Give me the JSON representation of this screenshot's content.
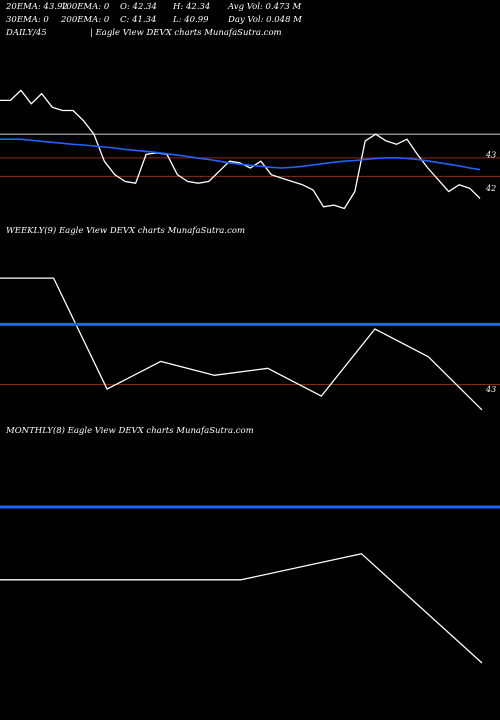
{
  "header": {
    "row1": [
      {
        "label": "20EMA: 43.92"
      },
      {
        "label": "100EMA: 0"
      },
      {
        "label": "O: 42.34"
      },
      {
        "label": "H: 42.34"
      },
      {
        "label": "Avg Vol: 0.473 M"
      }
    ],
    "row2": [
      {
        "label": "30EMA: 0"
      },
      {
        "label": "200EMA: 0"
      },
      {
        "label": "C: 41.34"
      },
      {
        "label": "L: 40.99"
      },
      {
        "label": "Day Vol: 0.048 M"
      }
    ]
  },
  "colors": {
    "background": "#000000",
    "price_line": "#ffffff",
    "ema_line": "#1e64ff",
    "gray_line": "#bbbbbb",
    "level_line": "#8b2a14"
  },
  "chart_data": [
    {
      "type": "line",
      "title": "DAILY/45",
      "subtitle": "| Eagle  View  DEVX  charts MunafaSutra.com",
      "price_labels": [
        "43",
        "42"
      ],
      "series": [
        {
          "role": "price",
          "values": [
            44.6,
            44.6,
            44.9,
            44.5,
            44.8,
            44.4,
            44.3,
            44.3,
            44.0,
            43.6,
            42.8,
            42.4,
            42.2,
            42.15,
            43.0,
            43.05,
            43.0,
            42.4,
            42.2,
            42.15,
            42.2,
            42.5,
            42.8,
            42.75,
            42.6,
            42.8,
            42.4,
            42.3,
            42.2,
            42.1,
            41.95,
            41.45,
            41.5,
            41.4,
            41.9,
            43.4,
            43.6,
            43.4,
            43.3,
            43.45,
            43.0,
            42.6,
            42.25,
            41.9,
            42.1,
            42.0,
            41.7
          ]
        },
        {
          "role": "ema",
          "values": [
            43.45,
            43.45,
            43.45,
            43.42,
            43.39,
            43.36,
            43.33,
            43.3,
            43.28,
            43.25,
            43.22,
            43.19,
            43.15,
            43.12,
            43.09,
            43.06,
            43.02,
            42.98,
            42.94,
            42.89,
            42.85,
            42.8,
            42.75,
            42.71,
            42.68,
            42.65,
            42.62,
            42.6,
            42.62,
            42.65,
            42.69,
            42.73,
            42.77,
            42.8,
            42.82,
            42.85,
            42.88,
            42.9,
            42.9,
            42.88,
            42.85,
            42.81,
            42.76,
            42.71,
            42.66,
            42.6,
            42.55
          ]
        }
      ],
      "levels": [
        43.6,
        42.9,
        42.35
      ]
    },
    {
      "type": "line",
      "title": "WEEKLY(9) Eagle  View  DEVX  charts MunafaSutra.com",
      "price_labels": [
        "43"
      ],
      "series": [
        {
          "role": "price",
          "values": [
            47.0,
            47.0,
            42.2,
            43.4,
            42.8,
            43.1,
            41.9,
            44.8,
            43.6,
            41.3
          ]
        },
        {
          "role": "ema",
          "values": [
            45.0,
            45.0
          ]
        }
      ],
      "levels": [
        42.4
      ]
    },
    {
      "type": "line",
      "title": "MONTHLY(8) Eagle  View  DEVX  charts MunafaSutra.com",
      "series": [
        {
          "role": "price",
          "values": [
            43.0,
            43.0,
            43.0,
            45.5,
            35.0
          ]
        },
        {
          "role": "ema",
          "values": [
            50.0,
            50.0
          ]
        }
      ]
    }
  ]
}
